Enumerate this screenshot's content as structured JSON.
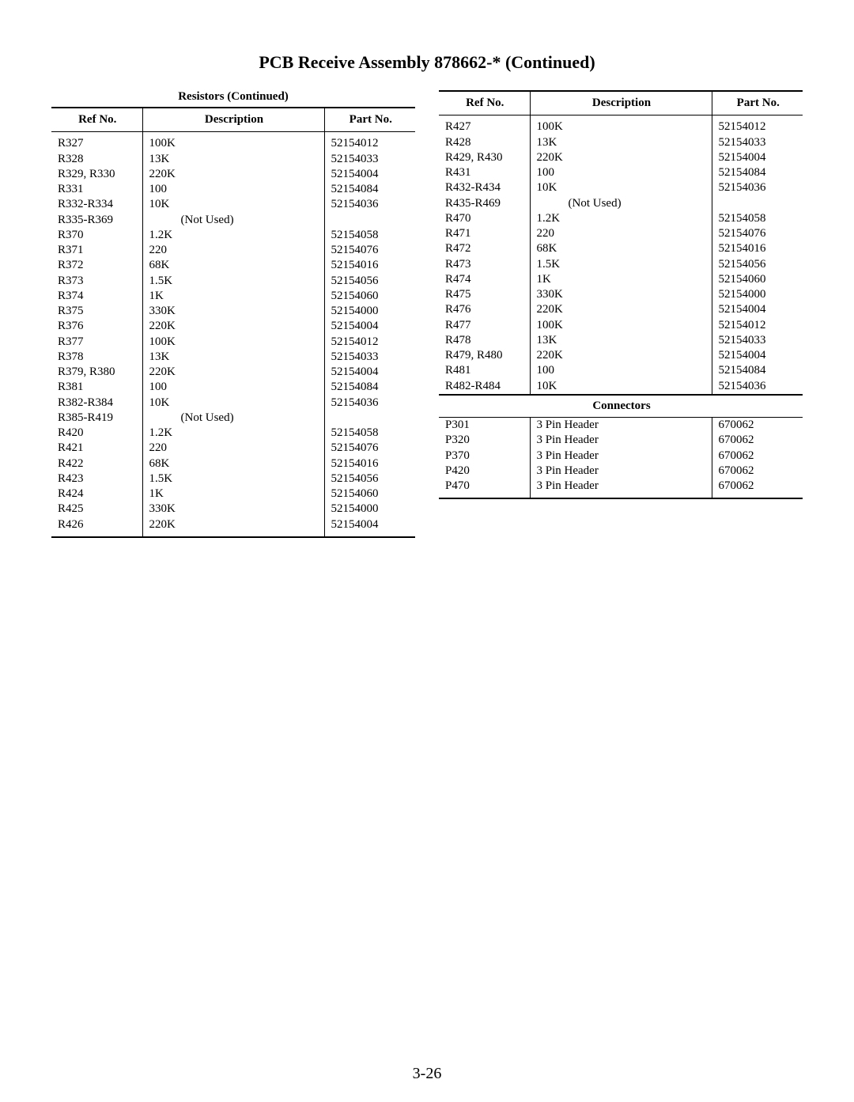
{
  "page": {
    "title": "PCB Receive Assembly 878662-* (Continued)",
    "left_caption": "Resistors (Continued)",
    "page_number": "3-26",
    "headers": {
      "ref": "Ref No.",
      "desc": "Description",
      "part": "Part No."
    },
    "connectors_header": "Connectors"
  },
  "left_rows": [
    {
      "ref": "R327",
      "desc": "100K",
      "part": "52154012"
    },
    {
      "ref": "R328",
      "desc": "13K",
      "part": "52154033"
    },
    {
      "ref": "R329, R330",
      "desc": "220K",
      "part": "52154004"
    },
    {
      "ref": "R331",
      "desc": "100",
      "part": "52154084"
    },
    {
      "ref": "R332-R334",
      "desc": "10K",
      "part": "52154036"
    },
    {
      "ref": "R335-R369",
      "desc": "(Not Used)",
      "part": "",
      "notused": true
    },
    {
      "ref": "R370",
      "desc": "1.2K",
      "part": "52154058"
    },
    {
      "ref": "R371",
      "desc": "220",
      "part": "52154076"
    },
    {
      "ref": "R372",
      "desc": "68K",
      "part": "52154016"
    },
    {
      "ref": "R373",
      "desc": "1.5K",
      "part": "52154056"
    },
    {
      "ref": "R374",
      "desc": "1K",
      "part": "52154060"
    },
    {
      "ref": "R375",
      "desc": "330K",
      "part": "52154000"
    },
    {
      "ref": "R376",
      "desc": "220K",
      "part": "52154004"
    },
    {
      "ref": "R377",
      "desc": "100K",
      "part": "52154012"
    },
    {
      "ref": "R378",
      "desc": "13K",
      "part": "52154033"
    },
    {
      "ref": "R379, R380",
      "desc": "220K",
      "part": "52154004"
    },
    {
      "ref": "R381",
      "desc": "100",
      "part": "52154084"
    },
    {
      "ref": "R382-R384",
      "desc": "10K",
      "part": "52154036"
    },
    {
      "ref": "R385-R419",
      "desc": "(Not Used)",
      "part": "",
      "notused": true
    },
    {
      "ref": "R420",
      "desc": "1.2K",
      "part": "52154058"
    },
    {
      "ref": "R421",
      "desc": "220",
      "part": "52154076"
    },
    {
      "ref": "R422",
      "desc": "68K",
      "part": "52154016"
    },
    {
      "ref": "R423",
      "desc": "1.5K",
      "part": "52154056"
    },
    {
      "ref": "R424",
      "desc": "1K",
      "part": "52154060"
    },
    {
      "ref": "R425",
      "desc": "330K",
      "part": "52154000"
    },
    {
      "ref": "R426",
      "desc": "220K",
      "part": "52154004"
    }
  ],
  "right_rows": [
    {
      "ref": "R427",
      "desc": "100K",
      "part": "52154012"
    },
    {
      "ref": "R428",
      "desc": "13K",
      "part": "52154033"
    },
    {
      "ref": "R429, R430",
      "desc": "220K",
      "part": "52154004"
    },
    {
      "ref": "R431",
      "desc": "100",
      "part": "52154084"
    },
    {
      "ref": "R432-R434",
      "desc": "10K",
      "part": "52154036"
    },
    {
      "ref": "R435-R469",
      "desc": "(Not Used)",
      "part": "",
      "notused": true
    },
    {
      "ref": "R470",
      "desc": "1.2K",
      "part": "52154058"
    },
    {
      "ref": "R471",
      "desc": "220",
      "part": "52154076"
    },
    {
      "ref": "R472",
      "desc": "68K",
      "part": "52154016"
    },
    {
      "ref": "R473",
      "desc": "1.5K",
      "part": "52154056"
    },
    {
      "ref": "R474",
      "desc": "1K",
      "part": "52154060"
    },
    {
      "ref": "R475",
      "desc": "330K",
      "part": "52154000"
    },
    {
      "ref": "R476",
      "desc": "220K",
      "part": "52154004"
    },
    {
      "ref": "R477",
      "desc": "100K",
      "part": "52154012"
    },
    {
      "ref": "R478",
      "desc": "13K",
      "part": "52154033"
    },
    {
      "ref": "R479, R480",
      "desc": "220K",
      "part": "52154004"
    },
    {
      "ref": "R481",
      "desc": "100",
      "part": "52154084"
    },
    {
      "ref": "R482-R484",
      "desc": "10K",
      "part": "52154036"
    }
  ],
  "connectors_rows": [
    {
      "ref": "P301",
      "desc": "3 Pin Header",
      "part": "670062"
    },
    {
      "ref": "P320",
      "desc": "3 Pin Header",
      "part": "670062"
    },
    {
      "ref": "P370",
      "desc": "3 Pin Header",
      "part": "670062"
    },
    {
      "ref": "P420",
      "desc": "3 Pin Header",
      "part": "670062"
    },
    {
      "ref": "P470",
      "desc": "3 Pin Header",
      "part": "670062"
    }
  ]
}
